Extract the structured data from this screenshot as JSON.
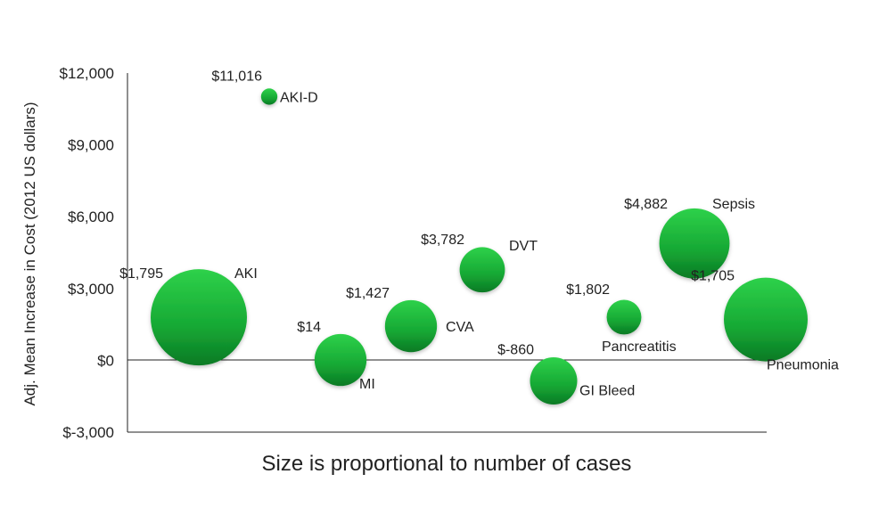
{
  "chart_data": {
    "type": "scatter",
    "subtype": "bubble",
    "xlabel": "Size is proportional to number of cases",
    "ylabel": "Adj. Mean Increase in Cost (2012 US dollars)",
    "ylim": [
      -3000,
      12000
    ],
    "yticks": [
      12000,
      9000,
      6000,
      3000,
      0,
      -3000
    ],
    "ytick_labels": [
      "$12,000",
      "$9,000",
      "$6,000",
      "$3,000",
      "$0",
      "$-3,000"
    ],
    "grid": false,
    "bubble_color": "#1db53a",
    "points": [
      {
        "name": "AKI",
        "value": 1795,
        "value_label": "$1,795",
        "relative_size": 1.0
      },
      {
        "name": "MI",
        "value": 14,
        "value_label": "$14",
        "relative_size": 0.54
      },
      {
        "name": "AKI-D",
        "value": 11016,
        "value_label": "$11,016",
        "relative_size": 0.17
      },
      {
        "name": "CVA",
        "value": 1427,
        "value_label": "$1,427",
        "relative_size": 0.54
      },
      {
        "name": "DVT",
        "value": 3782,
        "value_label": "$3,782",
        "relative_size": 0.47
      },
      {
        "name": "GI Bleed",
        "value": -860,
        "value_label": "$-860",
        "relative_size": 0.49
      },
      {
        "name": "Pancreatitis",
        "value": 1802,
        "value_label": "$1,802",
        "relative_size": 0.36
      },
      {
        "name": "Sepsis",
        "value": 4882,
        "value_label": "$4,882",
        "relative_size": 0.73
      },
      {
        "name": "Pneumonia",
        "value": 1705,
        "value_label": "$1,705",
        "relative_size": 0.87
      }
    ]
  }
}
